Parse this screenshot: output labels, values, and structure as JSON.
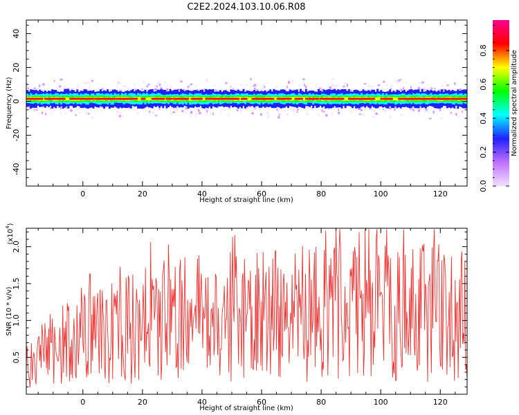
{
  "title": "C2E2.2024.103.10.06.R08",
  "chart_data": [
    {
      "type": "heatmap",
      "xlabel": "Height of straight line (km)",
      "ylabel": "Frequency (Hz)",
      "xlim": [
        -19,
        129
      ],
      "ylim": [
        -50,
        48
      ],
      "xticks": [
        0,
        20,
        40,
        60,
        80,
        100,
        120
      ],
      "xtick_labels": [
        "0",
        "20",
        "40",
        "60",
        "80",
        "100",
        "120"
      ],
      "yticks": [
        -40,
        -20,
        0,
        20,
        40
      ],
      "ytick_labels": [
        "-40",
        "-20",
        "0",
        "20",
        "40"
      ],
      "ridge": {
        "frequency_hz": 1.5,
        "x_range": [
          -19,
          129
        ],
        "description_values": {
          "peak_amplitude": 0.95,
          "halo_amplitude": 0.15
        }
      },
      "colorbar": {
        "label": "Normalized spectral amplitude",
        "range": [
          0.0,
          0.98
        ],
        "ticks": [
          0.0,
          0.2,
          0.4,
          0.6,
          0.8
        ],
        "tick_labels": [
          "0.0",
          "0.2",
          "0.4",
          "0.6",
          "0.8"
        ],
        "colormap": "hsv-rainbow",
        "colors": [
          "#f0e0ff",
          "#c070ff",
          "#2020ff",
          "#00ffff",
          "#00ff00",
          "#ffff00",
          "#ff0000",
          "#ff0090"
        ]
      }
    },
    {
      "type": "line",
      "xlabel": "Height of straight line (km)",
      "ylabel": "SNR (10 * v/v)",
      "multiplier_label": "(x10",
      "multiplier_exp": "4",
      "xlim": [
        -19,
        129
      ],
      "ylim": [
        0,
        2.25
      ],
      "xticks": [
        0,
        20,
        40,
        60,
        80,
        100,
        120
      ],
      "xtick_labels": [
        "0",
        "20",
        "40",
        "60",
        "80",
        "100",
        "120"
      ],
      "yticks": [
        0.5,
        1.0,
        1.5,
        2.0
      ],
      "ytick_labels": [
        "0.5",
        "1.0",
        "1.5",
        "2.0"
      ],
      "line_color": "#ee3333",
      "trend": {
        "x": [
          -19,
          -10,
          0,
          10,
          20,
          30,
          40,
          50,
          60,
          70,
          80,
          90,
          100,
          110,
          120,
          128
        ],
        "y": [
          0.45,
          0.62,
          0.72,
          0.82,
          0.95,
          1.0,
          1.05,
          1.08,
          1.05,
          1.08,
          1.12,
          1.08,
          1.1,
          1.12,
          1.1,
          1.05
        ]
      }
    }
  ]
}
